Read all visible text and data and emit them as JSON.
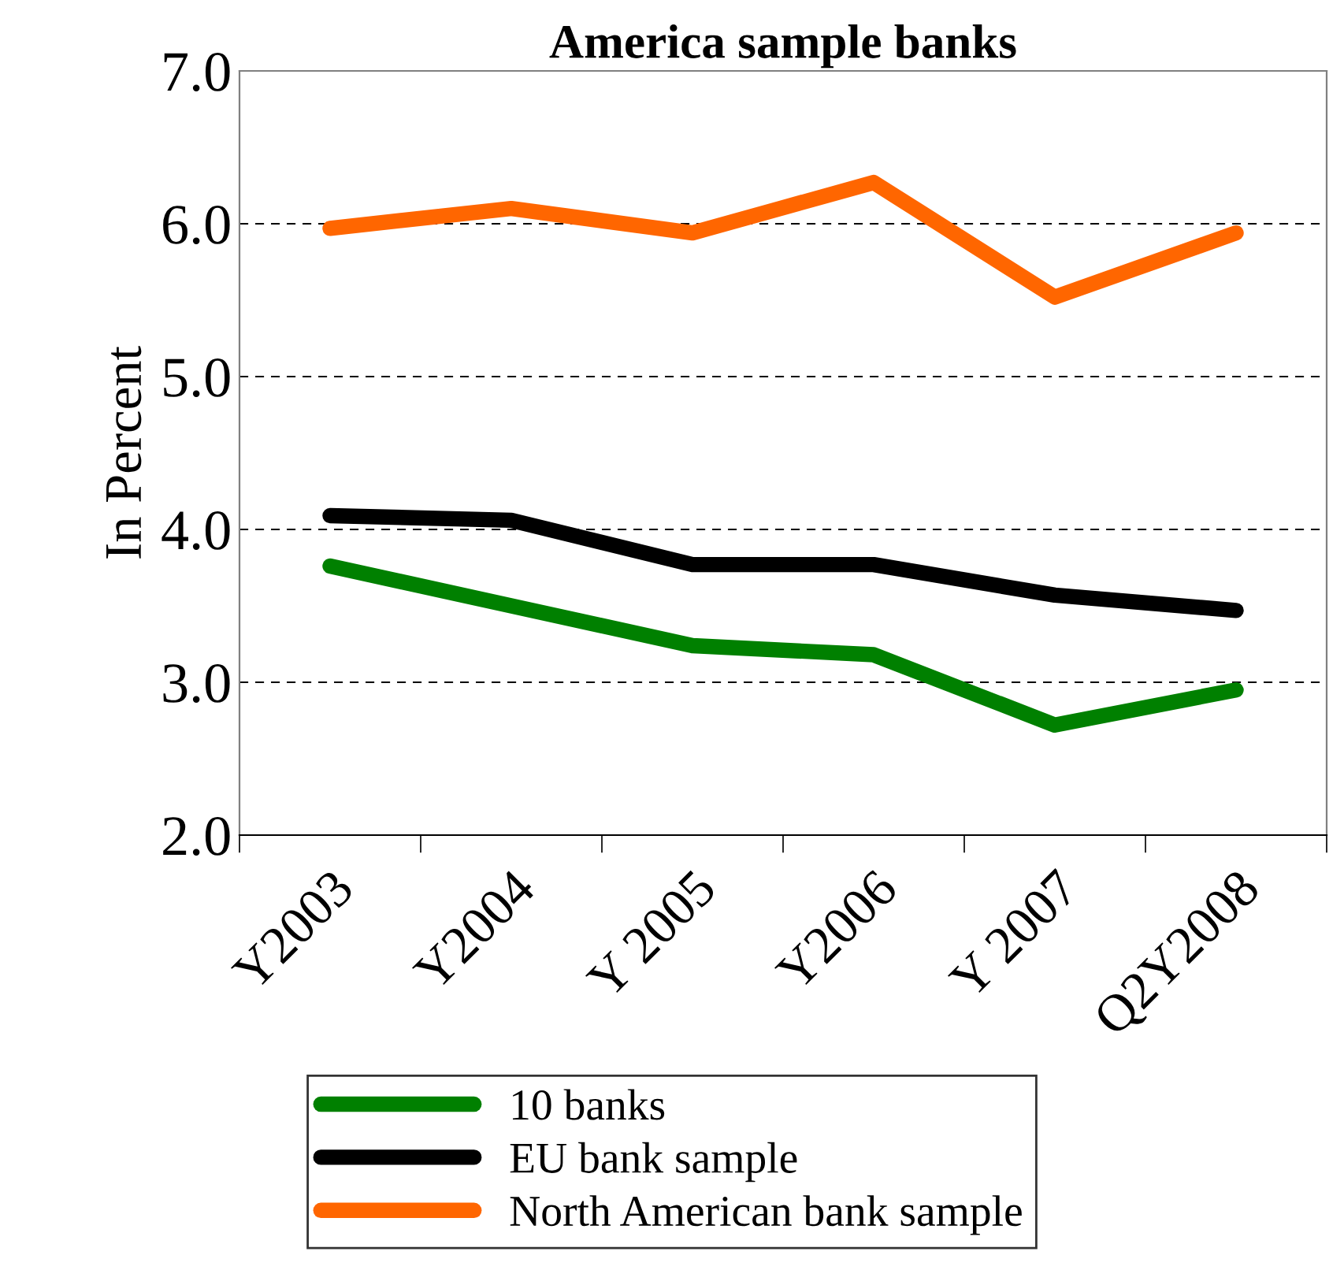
{
  "chart_data": {
    "type": "line",
    "title": "America sample banks",
    "ylabel": "In Percent",
    "categories": [
      "Y2003",
      "Y2004",
      "Y 2005",
      "Y2006",
      "Y 2007",
      "Q2Y2008"
    ],
    "series": [
      {
        "name": "10 banks",
        "color": "#008000",
        "values": [
          3.76,
          3.5,
          3.24,
          3.18,
          2.72,
          2.95
        ]
      },
      {
        "name": "EU bank sample",
        "color": "#000000",
        "values": [
          4.09,
          4.06,
          3.77,
          3.77,
          3.57,
          3.47
        ]
      },
      {
        "name": "North American bank sample",
        "color": "#ff6600",
        "values": [
          5.97,
          6.1,
          5.94,
          6.27,
          5.52,
          5.94
        ]
      }
    ],
    "ylim": [
      2.0,
      7.0
    ],
    "yticks": [
      {
        "value": 2,
        "label": "2.0"
      },
      {
        "value": 3,
        "label": "3.0"
      },
      {
        "value": 4,
        "label": "4.0"
      },
      {
        "value": 5,
        "label": "5.0"
      },
      {
        "value": 6,
        "label": "6.0"
      },
      {
        "value": 7,
        "label": "7.0"
      }
    ],
    "grid": "y",
    "legend": "bottom",
    "marker": "none",
    "line_style": "solid"
  }
}
